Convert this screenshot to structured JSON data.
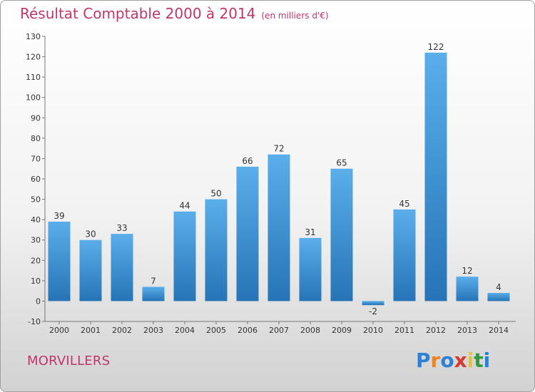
{
  "header": {
    "title": "Résultat Comptable 2000 à 2014",
    "subtitle": "(en milliers d'€)"
  },
  "footer": {
    "town": "MORVILLERS",
    "logo_text": "Proxiti"
  },
  "colors": {
    "title": "#c0366b",
    "bar_top": "#5aaeea",
    "bar_bottom": "#2674b7",
    "logo": [
      "#2e7fd6",
      "#e8842a",
      "#2e7fd6",
      "#d63a2e",
      "#e8c42a",
      "#2e9b3a",
      "#2e7fd6"
    ]
  },
  "chart_data": {
    "type": "bar",
    "title": "Résultat Comptable 2000 à 2014",
    "subtitle": "(en milliers d'€)",
    "xlabel": "",
    "ylabel": "",
    "categories": [
      "2000",
      "2001",
      "2002",
      "2003",
      "2004",
      "2005",
      "2006",
      "2007",
      "2008",
      "2009",
      "2010",
      "2011",
      "2012",
      "2013",
      "2014"
    ],
    "values": [
      39,
      30,
      33,
      7,
      44,
      50,
      66,
      72,
      31,
      65,
      -2,
      45,
      122,
      12,
      4
    ],
    "ylim": [
      -10,
      130
    ],
    "yticks": [
      -10,
      0,
      10,
      20,
      30,
      40,
      50,
      60,
      70,
      80,
      90,
      100,
      110,
      120,
      130
    ],
    "grid": false,
    "legend": "none"
  }
}
